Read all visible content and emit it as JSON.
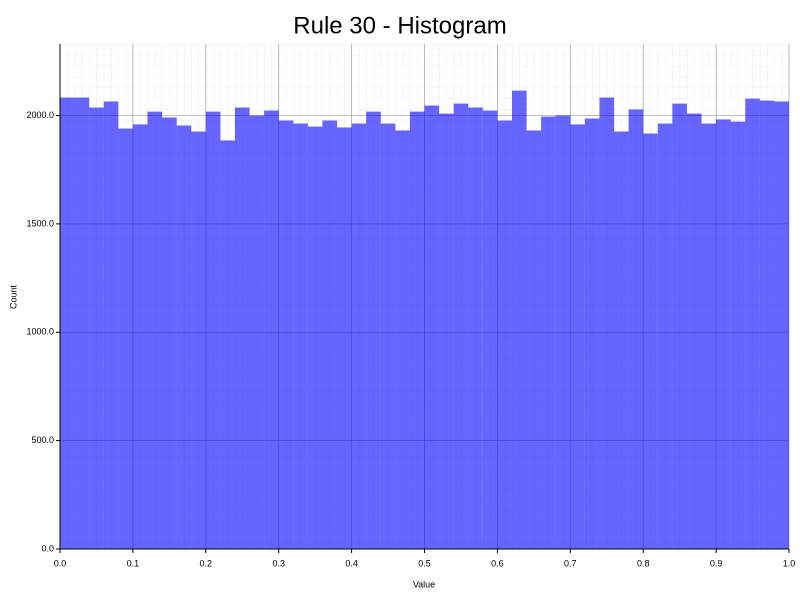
{
  "chart_data": {
    "type": "histogram",
    "title": "Rule 30 - Histogram",
    "x_label": "Value",
    "y_label": "Count",
    "bins": [
      0,
      0.02,
      0.04,
      0.06,
      0.08,
      0.1,
      0.12,
      0.14,
      0.16,
      0.18,
      0.2,
      0.22,
      0.24,
      0.26,
      0.28,
      0.3,
      0.32,
      0.34,
      0.36,
      0.38,
      0.4,
      0.42,
      0.44,
      0.46,
      0.48,
      0.5,
      0.52,
      0.54,
      0.56,
      0.58,
      0.6,
      0.62,
      0.64,
      0.66,
      0.68,
      0.7,
      0.72,
      0.74,
      0.76,
      0.78,
      0.8,
      0.82,
      0.84,
      0.86,
      0.88,
      0.9,
      0.92,
      0.94,
      0.96,
      0.98,
      1
    ],
    "values": [
      2083,
      2083,
      2037,
      2065,
      1940,
      1959,
      2018,
      1991,
      1954,
      1926,
      2018,
      1885,
      2037,
      2000,
      2023,
      1977,
      1963,
      1949,
      1977,
      1945,
      1963,
      2018,
      1963,
      1931,
      2018,
      2046,
      2009,
      2055,
      2037,
      2023,
      1977,
      2115,
      1931,
      1995,
      2000,
      1959,
      1986,
      2083,
      1926,
      2028,
      1917,
      1963,
      2055,
      2009,
      1963,
      1982,
      1972,
      2078,
      2069,
      2065
    ],
    "color": "#0000ff",
    "alpha": 0.6,
    "xlim": [
      0,
      1
    ],
    "ylim": [
      0,
      2330
    ],
    "xticks": [
      {
        "value": 0,
        "label": "0.0"
      },
      0.1,
      0.2,
      0.3,
      0.4,
      0.5,
      0.6,
      0.7,
      0.8,
      0.9,
      {
        "value": 1,
        "label": "1.0"
      }
    ],
    "yticks": [
      {
        "value": 0,
        "label": "0.0"
      },
      {
        "value": 500,
        "label": "500.0"
      },
      {
        "value": 1000,
        "label": "1000.0"
      },
      {
        "value": 1500,
        "label": "1500.0"
      },
      {
        "value": 2000,
        "label": "2000.0"
      }
    ],
    "grid": true
  }
}
